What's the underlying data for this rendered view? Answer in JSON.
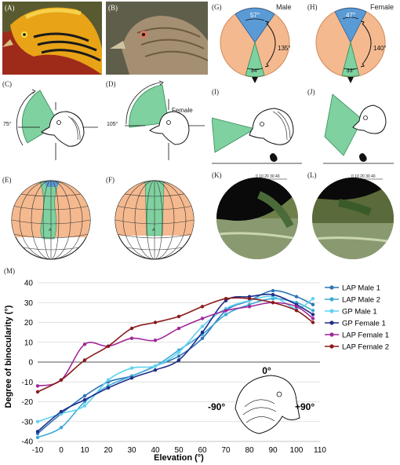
{
  "figure": {
    "panel_labels": {
      "a": "(A)",
      "b": "(B)",
      "c": "(C)",
      "d": "(D)",
      "e": "(E)",
      "f": "(F)",
      "g": "(G)",
      "h": "(H)",
      "i": "(I)",
      "j": "(J)",
      "k": "(K)",
      "l": "(L)",
      "m": "(M)"
    },
    "male_label": "Male",
    "female_label": "Female",
    "female_label_d": "Female",
    "g_top_angle": "57°",
    "g_side_angle": "135°",
    "g_bottom_angle": "34°",
    "h_top_angle": "47°",
    "h_side_angle": "140°",
    "h_bottom_angle": "33°",
    "c_angle": "75°",
    "d_angle": "105°",
    "k_scale": "0 10 20 30 40",
    "l_scale": "0 10 20 30 40",
    "inset_top": "0°",
    "inset_left": "-90°",
    "inset_right": "+90°",
    "colors": {
      "orange_field": "#f5b98f",
      "blue_field": "#5b9bd5",
      "green_field": "#7fd1a0"
    }
  },
  "chart_data": {
    "type": "line",
    "title": "",
    "xlabel": "Elevation (°)",
    "ylabel": "Degree of binocularity (°)",
    "xlim": [
      -10,
      110
    ],
    "ylim": [
      -40,
      40
    ],
    "x_ticks": [
      -10,
      0,
      10,
      20,
      30,
      40,
      50,
      60,
      70,
      80,
      90,
      100,
      110
    ],
    "y_ticks": [
      -40,
      -30,
      -20,
      -10,
      0,
      10,
      20,
      30,
      40
    ],
    "x": [
      -10,
      0,
      10,
      20,
      30,
      40,
      50,
      60,
      70,
      80,
      90,
      100,
      107
    ],
    "legend_position": "top-right",
    "series": [
      {
        "name": "LAP Male 1",
        "color": "#2e75b6",
        "values": [
          -36,
          -26,
          -17,
          -10,
          -7,
          -2,
          3,
          12,
          26,
          31,
          36,
          33,
          29
        ]
      },
      {
        "name": "LAP Male 2",
        "color": "#3fa9d6",
        "values": [
          -38,
          -33,
          -20,
          -12,
          -7,
          -2,
          6,
          14,
          24,
          29,
          32,
          30,
          26
        ]
      },
      {
        "name": "GP Male 1",
        "color": "#5fd3ef",
        "values": [
          -30,
          -26,
          -22,
          -9,
          -3,
          -2,
          5,
          18,
          27,
          31,
          33,
          27,
          32
        ]
      },
      {
        "name": "GP Female 1",
        "color": "#1f2d8a",
        "values": [
          -35,
          -25,
          -19,
          -13,
          -8,
          -4,
          1,
          15,
          31,
          33,
          34,
          29,
          24
        ]
      },
      {
        "name": "LAP Female 1",
        "color": "#a0279a",
        "values": [
          -12,
          -9,
          9,
          8,
          12,
          11,
          17,
          22,
          26,
          28,
          30,
          28,
          22
        ]
      },
      {
        "name": "LAP Female 2",
        "color": "#8b1a1a",
        "values": [
          -15,
          -9,
          1,
          8,
          17,
          20,
          23,
          28,
          32,
          32,
          30,
          26,
          20
        ]
      }
    ]
  }
}
